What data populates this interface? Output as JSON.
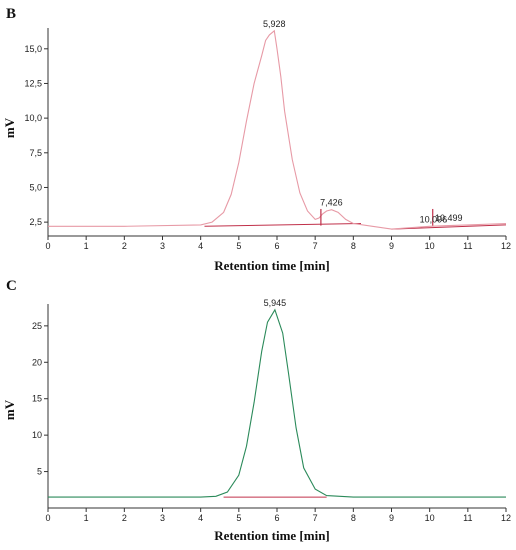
{
  "chart_data": [
    {
      "panel": "B",
      "type": "line",
      "xlabel": "Retention time [min]",
      "ylabel": "mV",
      "xlim": [
        0,
        12
      ],
      "ylim": [
        1.5,
        16.5
      ],
      "xticks": [
        "0",
        "1",
        "2",
        "3",
        "4",
        "5",
        "6",
        "7",
        "8",
        "9",
        "10",
        "11",
        "12"
      ],
      "yticks": [
        "2,5",
        "5,0",
        "7,5",
        "10,0",
        "12,5",
        "15,0"
      ],
      "ytick_values": [
        2.5,
        5.0,
        7.5,
        10.0,
        12.5,
        15.0
      ],
      "colors": {
        "signal": "#e79aa6",
        "baseline": "#c0304a",
        "marker": "#c0304a"
      },
      "series": [
        {
          "x": [
            0,
            2,
            4.0,
            4.3,
            4.6,
            4.8,
            5.0,
            5.2,
            5.4,
            5.6,
            5.7,
            5.8,
            5.93,
            6.0,
            6.1,
            6.2,
            6.4,
            6.6,
            6.8,
            7.0,
            7.1,
            7.2,
            7.3,
            7.43,
            7.6,
            7.8,
            8.0,
            8.5,
            9.0,
            9.5,
            10.0,
            10.5,
            11.0,
            12.0
          ],
          "y": [
            2.2,
            2.2,
            2.3,
            2.5,
            3.2,
            4.5,
            6.8,
            9.8,
            12.5,
            14.5,
            15.6,
            16.0,
            16.3,
            15.0,
            13.0,
            10.5,
            7.0,
            4.6,
            3.3,
            2.7,
            2.8,
            3.1,
            3.3,
            3.4,
            3.2,
            2.7,
            2.4,
            2.2,
            2.0,
            2.1,
            2.2,
            2.25,
            2.3,
            2.4
          ]
        }
      ],
      "baselines": [
        {
          "x": [
            4.1,
            8.2
          ],
          "y": [
            2.2,
            2.4
          ]
        },
        {
          "x": [
            9.0,
            12.0
          ],
          "y": [
            2.0,
            2.3
          ]
        }
      ],
      "peak_markers": [
        7.15,
        10.08
      ],
      "peaks": [
        {
          "label": "5,928",
          "x": 5.928,
          "y": 16.3
        },
        {
          "label": "7,426",
          "x": 7.426,
          "y": 3.4
        },
        {
          "label": "10,096",
          "x": 10.096,
          "y": 2.2
        },
        {
          "label": "10,499",
          "x": 10.499,
          "y": 2.3
        }
      ]
    },
    {
      "panel": "C",
      "type": "line",
      "xlabel": "Retention time [min]",
      "ylabel": "mV",
      "xlim": [
        0,
        12
      ],
      "ylim": [
        0,
        28
      ],
      "xticks": [
        "0",
        "1",
        "2",
        "3",
        "4",
        "5",
        "6",
        "7",
        "8",
        "9",
        "10",
        "11",
        "12"
      ],
      "yticks": [
        "5",
        "10",
        "15",
        "20",
        "25"
      ],
      "ytick_values": [
        5,
        10,
        15,
        20,
        25
      ],
      "colors": {
        "signal": "#2b8a5a",
        "baseline": "#c0304a",
        "marker": "#c0304a"
      },
      "series": [
        {
          "x": [
            0,
            2,
            4.0,
            4.4,
            4.7,
            5.0,
            5.2,
            5.4,
            5.6,
            5.75,
            5.945,
            6.15,
            6.3,
            6.5,
            6.7,
            7.0,
            7.3,
            8.0,
            12.0
          ],
          "y": [
            1.5,
            1.5,
            1.5,
            1.6,
            2.2,
            4.5,
            8.5,
            14.5,
            21.5,
            25.5,
            27.2,
            24.0,
            18.5,
            11.0,
            5.5,
            2.6,
            1.7,
            1.5,
            1.5
          ]
        }
      ],
      "baselines": [
        {
          "x": [
            4.6,
            7.3
          ],
          "y": [
            1.5,
            1.5
          ]
        }
      ],
      "peak_markers": [],
      "peaks": [
        {
          "label": "5,945",
          "x": 5.945,
          "y": 27.2
        }
      ]
    }
  ]
}
